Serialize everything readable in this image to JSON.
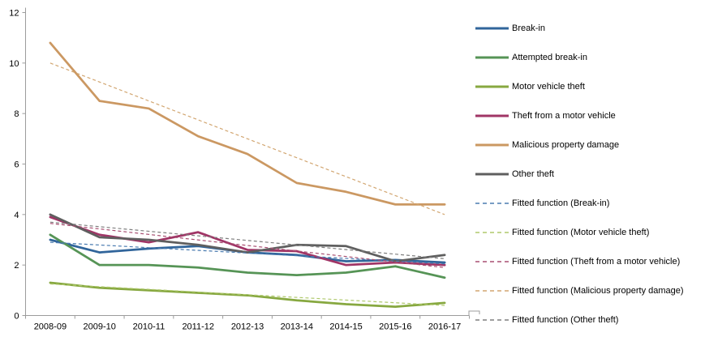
{
  "chart_data": {
    "type": "line",
    "title": "",
    "xlabel": "",
    "ylabel": "",
    "ylim": [
      0,
      12
    ],
    "yticks": [
      0,
      2,
      4,
      6,
      8,
      10,
      12
    ],
    "grid": false,
    "legend_position": "right",
    "categories": [
      "2008-09",
      "2009-10",
      "2010-11",
      "2011-12",
      "2012-13",
      "2013-14",
      "2014-15",
      "2015-16",
      "2016-17"
    ],
    "series": [
      {
        "name": "Break-in",
        "color": "#31659B",
        "style": "solid",
        "values": [
          3.0,
          2.5,
          2.65,
          2.75,
          2.5,
          2.4,
          2.15,
          2.2,
          2.1
        ]
      },
      {
        "name": "Attempted break-in",
        "color": "#569456",
        "style": "solid",
        "values": [
          3.2,
          2.0,
          2.0,
          1.9,
          1.7,
          1.6,
          1.7,
          1.95,
          1.5
        ]
      },
      {
        "name": "Motor vehicle theft",
        "color": "#87A840",
        "style": "solid",
        "values": [
          1.3,
          1.1,
          1.0,
          0.9,
          0.8,
          0.6,
          0.45,
          0.35,
          0.5
        ]
      },
      {
        "name": "Theft from a motor vehicle",
        "color": "#A03566",
        "style": "solid",
        "values": [
          3.9,
          3.2,
          2.9,
          3.3,
          2.6,
          2.55,
          2.0,
          2.1,
          2.0
        ]
      },
      {
        "name": "Malicious property damage",
        "color": "#CB9862",
        "style": "solid",
        "values": [
          10.8,
          8.5,
          8.2,
          7.1,
          6.4,
          5.25,
          4.9,
          4.4,
          4.4
        ]
      },
      {
        "name": "Other theft",
        "color": "#5F5F5F",
        "style": "solid",
        "values": [
          4.0,
          3.1,
          3.0,
          2.8,
          2.5,
          2.8,
          2.75,
          2.15,
          2.4
        ]
      },
      {
        "name": "Fitted function (Break-in)",
        "color": "#4A7BB0",
        "style": "dashed",
        "fit": [
          2.9,
          2.05
        ]
      },
      {
        "name": "Fitted function (Motor vehicle theft)",
        "color": "#AFC96C",
        "style": "dashed",
        "fit": [
          1.25,
          0.4
        ]
      },
      {
        "name": "Fitted function (Theft from a motor vehicle)",
        "color": "#A84F72",
        "style": "dashed",
        "fit": [
          3.65,
          1.9
        ]
      },
      {
        "name": "Fitted function (Malicious property damage)",
        "color": "#D2A671",
        "style": "dashed",
        "fit": [
          10.0,
          4.0
        ]
      },
      {
        "name": "Fitted function (Other theft)",
        "color": "#7F7F7F",
        "style": "dashed",
        "fit": [
          3.7,
          2.25
        ]
      }
    ]
  },
  "axis": {
    "line_color": "#9C9C9C",
    "tick_color": "#9C9C9C",
    "label_color": "#000000"
  }
}
